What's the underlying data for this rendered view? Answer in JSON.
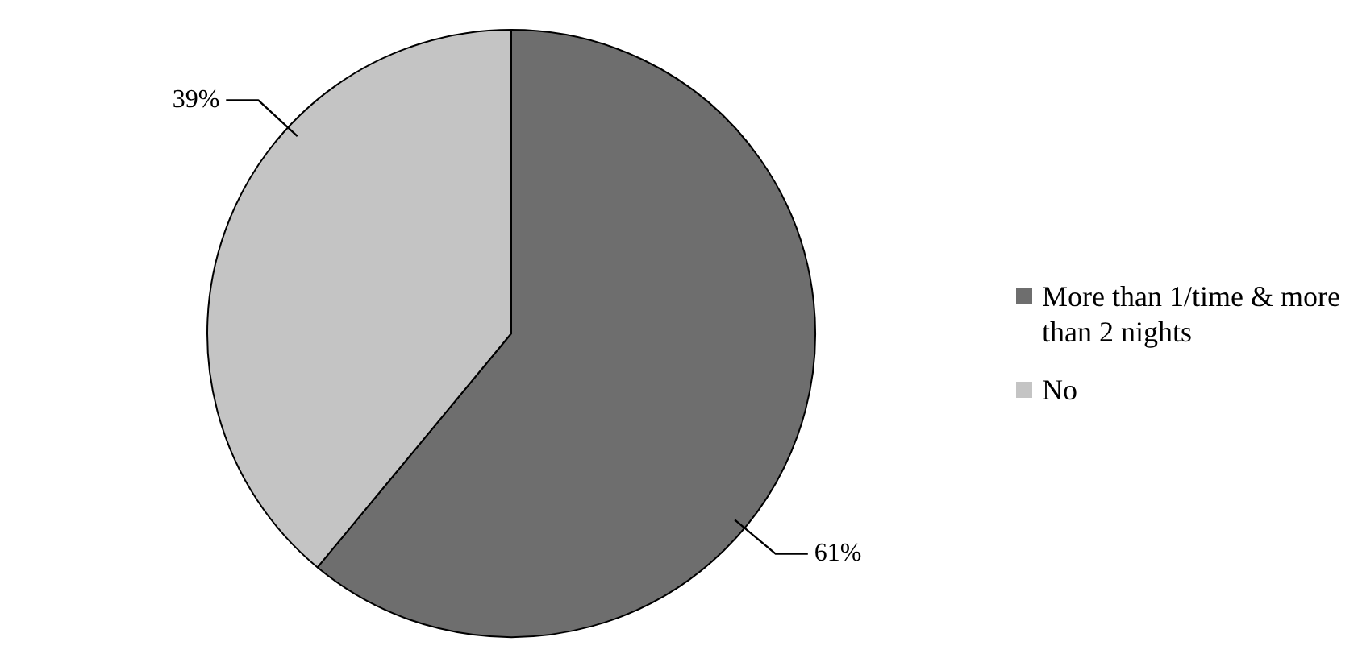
{
  "chart_data": {
    "type": "pie",
    "categories": [
      "More than 1/time & more than 2 nights",
      "No"
    ],
    "values": [
      61,
      39
    ],
    "colors": [
      "#6e6e6e",
      "#c4c4c4"
    ],
    "value_labels": [
      "61%",
      "39%"
    ],
    "legend": "right"
  }
}
